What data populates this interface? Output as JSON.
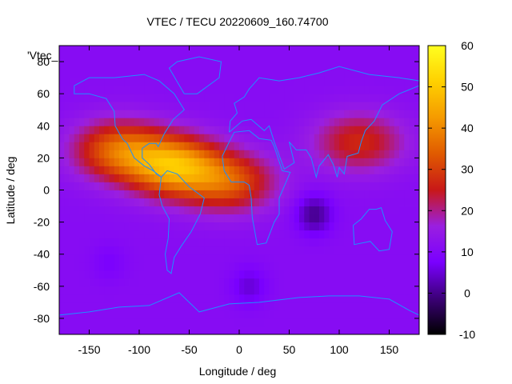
{
  "chart_data": {
    "type": "heatmap",
    "title": "VTEC / TECU 20220609_160.74700",
    "xlabel": "Longitude / deg",
    "ylabel": "Latitude / deg",
    "key_label": "'Vtec_",
    "xlim": [
      -180,
      180
    ],
    "ylim": [
      -90,
      90
    ],
    "x_ticks": [
      -150,
      -100,
      -50,
      0,
      50,
      100,
      150
    ],
    "y_ticks": [
      -80,
      -60,
      -40,
      -20,
      0,
      20,
      40,
      60,
      80
    ],
    "colorbar": {
      "range": [
        -10,
        60
      ],
      "ticks": [
        -10,
        0,
        10,
        20,
        30,
        40,
        50,
        60
      ],
      "colormap": [
        "#000000",
        "#3c0078",
        "#7a00ff",
        "#9a1fe0",
        "#c81818",
        "#e05a00",
        "#f59a00",
        "#ffd000",
        "#ffff20"
      ]
    },
    "coastline_color": "#1e90ff",
    "grid": false,
    "features": [
      {
        "name": "equatorial-anomaly-americas",
        "lon": -65,
        "lat": 15,
        "vtec": 44
      },
      {
        "name": "northern-crest",
        "lon": -120,
        "lat": 25,
        "vtec": 35
      },
      {
        "name": "southern-crest-atlantic",
        "lon": -10,
        "lat": 5,
        "vtec": 32
      },
      {
        "name": "asia-north",
        "lon": 120,
        "lat": 30,
        "vtec": 27
      },
      {
        "name": "indian-ocean-low",
        "lon": 75,
        "lat": -15,
        "vtec": 0
      },
      {
        "name": "south-atlantic-low",
        "lon": 10,
        "lat": -60,
        "vtec": 5
      },
      {
        "name": "pacific-south-low",
        "lon": -130,
        "lat": -45,
        "vtec": 8
      }
    ]
  }
}
